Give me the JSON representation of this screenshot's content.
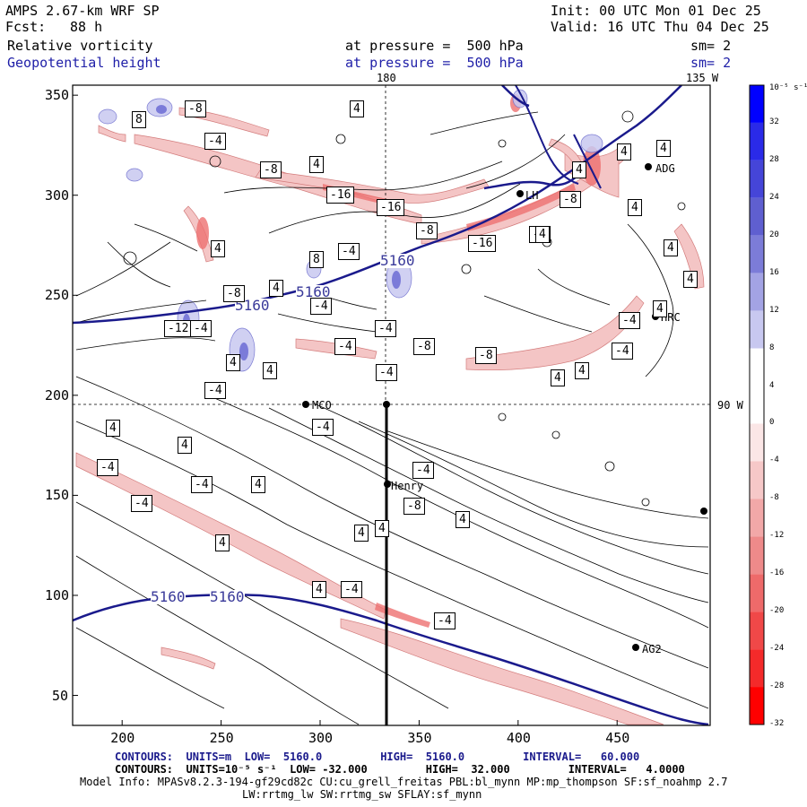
{
  "header": {
    "model": "AMPS 2.67-km WRF SP",
    "fcst_label": "Fcst:",
    "fcst_value": "88 h",
    "init": "Init: 00 UTC Mon 01 Dec 25",
    "valid": "Valid: 16 UTC Thu 04 Dec 25",
    "field1_name": "Relative vorticity",
    "field1_level": "at pressure =  500 hPa",
    "field1_smooth": "sm= 2",
    "field2_name": "Geopotential height",
    "field2_level": "at pressure =  500 hPa",
    "field2_smooth": "sm= 2"
  },
  "map": {
    "xticks": [
      "200",
      "250",
      "300",
      "350",
      "400",
      "450"
    ],
    "yticks": [
      "350",
      "300",
      "250",
      "200",
      "150",
      "100",
      "50"
    ],
    "meridian_labels": {
      "top_180": "180",
      "top_135w": "135 W",
      "right_90w": "90 W"
    },
    "stations": [
      {
        "name": "ADG"
      },
      {
        "name": "MCO"
      },
      {
        "name": "Henry"
      },
      {
        "name": "HRC"
      },
      {
        "name": "AG2"
      },
      {
        "name": "LH"
      }
    ],
    "height_contour_labels": [
      "5160",
      "5160",
      "5160",
      "5160",
      "5160"
    ],
    "vorticity_labels": [
      "8",
      "-8",
      "-4",
      "4",
      "-8",
      "4",
      "-16",
      "-16",
      "-8",
      "-16",
      "-8",
      "-4",
      "4",
      "-4",
      "8",
      "-8",
      "4",
      "-4",
      "-12",
      "-4",
      "-4",
      "-4",
      "-8",
      "-8",
      "4",
      "4",
      "-4",
      "-4",
      "4",
      "4",
      "4",
      "4",
      "4",
      "4",
      "4",
      "4",
      "-4",
      "4",
      "4",
      "-4",
      "4",
      "4",
      "-4",
      "-4",
      "4",
      "4",
      "-4",
      "-4",
      "-4",
      "-8",
      "4",
      "4",
      "4",
      "4",
      "-4",
      "-4"
    ]
  },
  "colorbar": {
    "unit": "10⁻⁵ s⁻¹",
    "labels": [
      "32",
      "28",
      "24",
      "20",
      "16",
      "12",
      "8",
      "4",
      "0",
      "-4",
      "-8",
      "-12",
      "-16",
      "-20",
      "-24",
      "-28",
      "-32"
    ],
    "colors": [
      "#0000ff",
      "#2a2ae8",
      "#4545d8",
      "#5f5fd0",
      "#7c7cd8",
      "#a3a3e4",
      "#c8c8f0",
      "#ffffff",
      "#ffffff",
      "#fbe6e6",
      "#f6c8c8",
      "#f2a8a8",
      "#ee8a8a",
      "#ee6a6a",
      "#f04848",
      "#f42a2a",
      "#ff0000"
    ]
  },
  "footer": {
    "contours_height": "CONTOURS:  UNITS=m  LOW=  5160.0         HIGH=  5160.0         INTERVAL=   60.000",
    "contours_vort": "CONTOURS:  UNITS=10⁻⁵ s⁻¹  LOW= -32.000         HIGH=  32.000         INTERVAL=   4.0000",
    "model_info": "Model Info: MPASv8.2.3-194-gf29cd82c CU:cu_grell_freitas PBL:bl_mynn MP:mp_thompson SF:sf_noahmp 2.7",
    "model_info2": "LW:rrtmg_lw SW:rrtmg_sw SFLAY:sf_mynn"
  },
  "colors": {
    "height_contour": "#1a1a8c",
    "header_blue": "#1f1fa8"
  }
}
